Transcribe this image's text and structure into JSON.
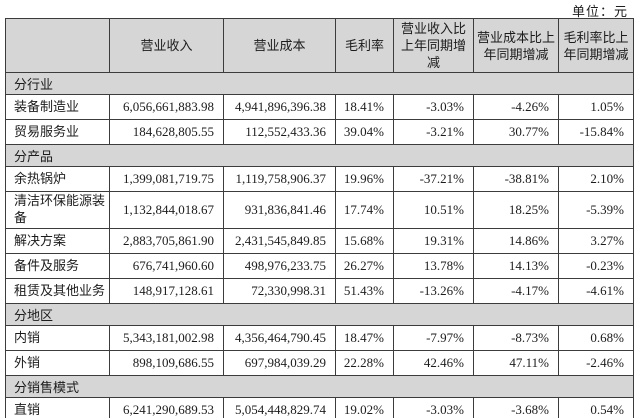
{
  "unit_label": "单位：元",
  "table": {
    "headers": [
      "",
      "营业收入",
      "营业成本",
      "毛利率",
      "营业收入比上年同期增减",
      "营业成本比上年同期增减",
      "毛利率比上年同期增减"
    ],
    "rows": [
      {
        "type": "section",
        "label": "分行业"
      },
      {
        "type": "data",
        "label": "装备制造业",
        "values": [
          "6,056,661,883.98",
          "4,941,896,396.38",
          "18.41%",
          "-3.03%",
          "-4.26%",
          "1.05%"
        ]
      },
      {
        "type": "data",
        "label": "贸易服务业",
        "values": [
          "184,628,805.55",
          "112,552,433.36",
          "39.04%",
          "-3.21%",
          "30.77%",
          "-15.84%"
        ]
      },
      {
        "type": "section",
        "label": "分产品"
      },
      {
        "type": "data",
        "label": "余热锅炉",
        "values": [
          "1,399,081,719.75",
          "1,119,758,906.37",
          "19.96%",
          "-37.21%",
          "-38.81%",
          "2.10%"
        ]
      },
      {
        "type": "data",
        "label": "清洁环保能源装备",
        "values": [
          "1,132,844,018.67",
          "931,836,841.46",
          "17.74%",
          "10.51%",
          "18.25%",
          "-5.39%"
        ]
      },
      {
        "type": "data",
        "label": "解决方案",
        "values": [
          "2,883,705,861.90",
          "2,431,545,849.85",
          "15.68%",
          "19.31%",
          "14.86%",
          "3.27%"
        ]
      },
      {
        "type": "data",
        "label": "备件及服务",
        "values": [
          "676,741,960.60",
          "498,976,233.75",
          "26.27%",
          "13.78%",
          "14.13%",
          "-0.23%"
        ]
      },
      {
        "type": "data",
        "label": "租赁及其他业务",
        "values": [
          "148,917,128.61",
          "72,330,998.31",
          "51.43%",
          "-13.26%",
          "-4.17%",
          "-4.61%"
        ]
      },
      {
        "type": "section",
        "label": "分地区"
      },
      {
        "type": "data",
        "label": "内销",
        "values": [
          "5,343,181,002.98",
          "4,356,464,790.45",
          "18.47%",
          "-7.97%",
          "-8.73%",
          "0.68%"
        ]
      },
      {
        "type": "data",
        "label": "外销",
        "values": [
          "898,109,686.55",
          "697,984,039.29",
          "22.28%",
          "42.46%",
          "47.11%",
          "-2.46%"
        ]
      },
      {
        "type": "section",
        "label": "分销售模式"
      },
      {
        "type": "data",
        "label": "直销",
        "values": [
          "6,241,290,689.53",
          "5,054,448,829.74",
          "19.02%",
          "-3.03%",
          "-3.68%",
          "0.54%"
        ]
      }
    ]
  }
}
